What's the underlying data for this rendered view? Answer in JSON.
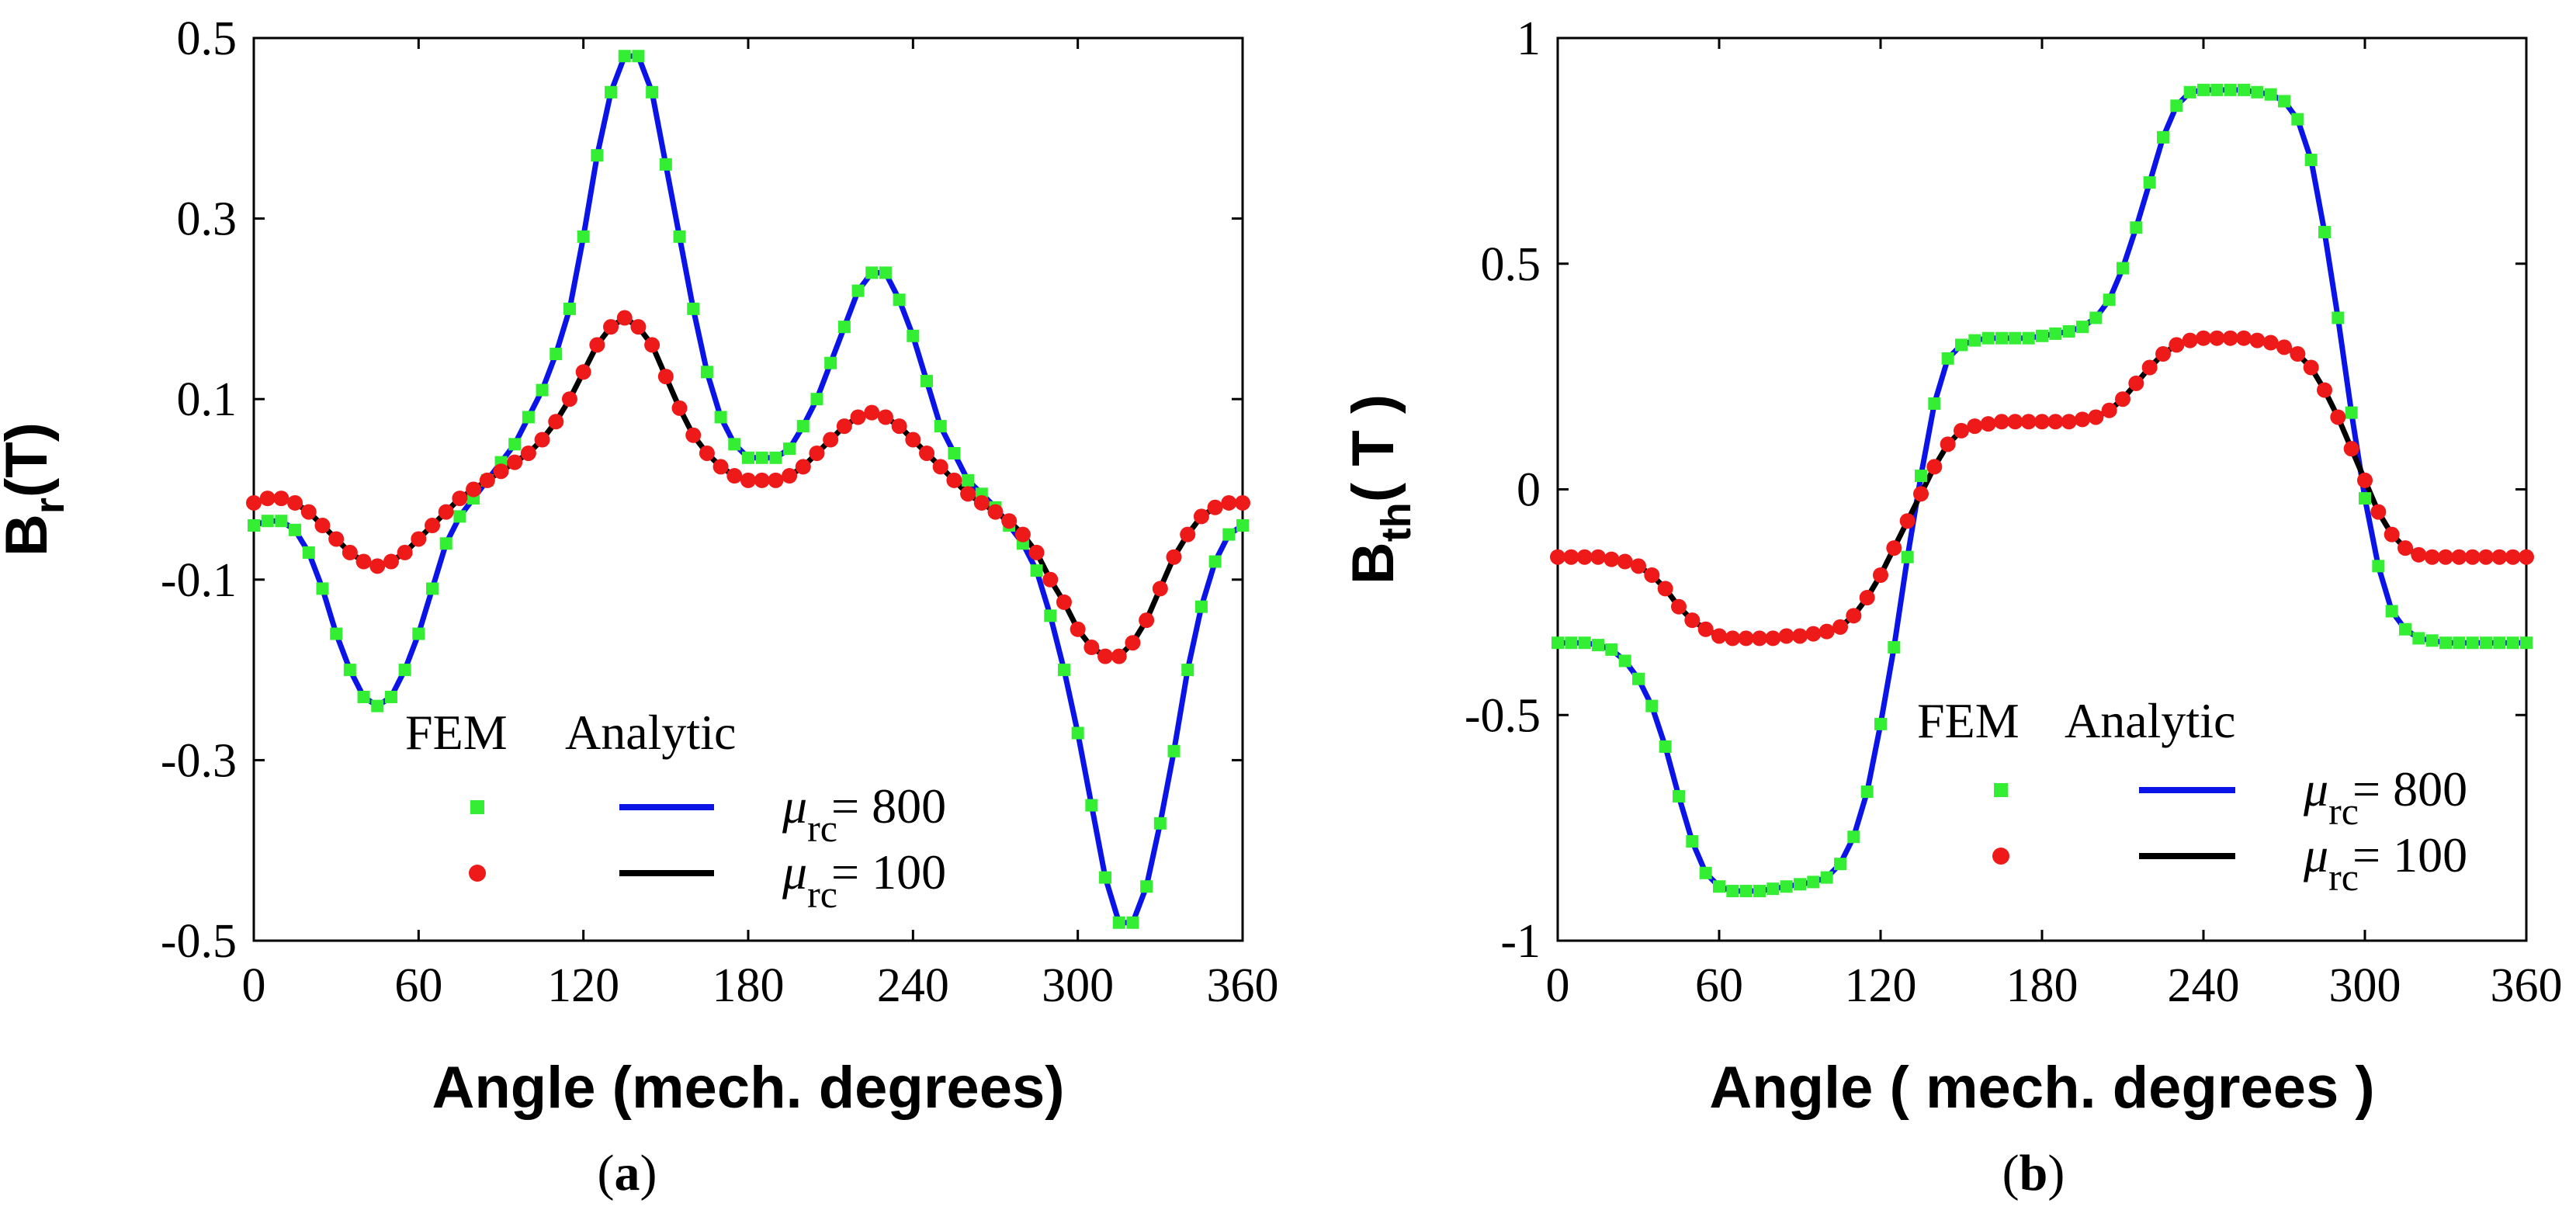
{
  "chart_data": [
    {
      "type": "line",
      "panel_label": "a",
      "xlabel": "Angle (mech. degrees)",
      "ylabel_main": "B",
      "ylabel_sub": "r",
      "ylabel_unit": "(T)",
      "xlim": [
        0,
        360
      ],
      "ylim": [
        -0.5,
        0.5
      ],
      "xticks": [
        "0",
        "60",
        "120",
        "180",
        "240",
        "300",
        "360"
      ],
      "yticks": [
        "-0.5",
        "-0.3",
        "-0.1",
        "0.1",
        "0.3",
        "0.5"
      ],
      "xtick_values": [
        0,
        60,
        120,
        180,
        240,
        300,
        360
      ],
      "ytick_values": [
        -0.5,
        -0.3,
        -0.1,
        0.1,
        0.3,
        0.5
      ],
      "legend": {
        "col_fem": "FEM",
        "col_analytic": "Analytic",
        "rows": [
          {
            "mu": "μ",
            "sub": "rc",
            "value": "= 800"
          },
          {
            "mu": "μ",
            "sub": "rc",
            "value": "= 100"
          }
        ]
      },
      "series": [
        {
          "name": "μrc = 800",
          "fem_color": "#33ee33",
          "line_color": "#0a14e6",
          "x": [
            0,
            5,
            10,
            15,
            20,
            25,
            30,
            35,
            40,
            45,
            50,
            55,
            60,
            65,
            70,
            75,
            80,
            85,
            90,
            95,
            100,
            105,
            110,
            115,
            120,
            125,
            130,
            135,
            140,
            145,
            150,
            155,
            160,
            165,
            170,
            175,
            180,
            185,
            190,
            195,
            200,
            205,
            210,
            215,
            220,
            225,
            230,
            235,
            240,
            245,
            250,
            255,
            260,
            265,
            270,
            275,
            280,
            285,
            290,
            295,
            300,
            305,
            310,
            315,
            320,
            325,
            330,
            335,
            340,
            345,
            350,
            355,
            360
          ],
          "y": [
            -0.04,
            -0.035,
            -0.035,
            -0.045,
            -0.07,
            -0.11,
            -0.16,
            -0.2,
            -0.23,
            -0.24,
            -0.23,
            -0.2,
            -0.16,
            -0.11,
            -0.06,
            -0.03,
            -0.01,
            0.01,
            0.03,
            0.05,
            0.08,
            0.11,
            0.15,
            0.2,
            0.28,
            0.37,
            0.44,
            0.48,
            0.48,
            0.44,
            0.36,
            0.28,
            0.2,
            0.13,
            0.08,
            0.05,
            0.035,
            0.035,
            0.035,
            0.045,
            0.07,
            0.1,
            0.14,
            0.18,
            0.22,
            0.24,
            0.24,
            0.21,
            0.17,
            0.12,
            0.07,
            0.04,
            0.01,
            -0.005,
            -0.02,
            -0.04,
            -0.06,
            -0.09,
            -0.14,
            -0.2,
            -0.27,
            -0.35,
            -0.43,
            -0.48,
            -0.48,
            -0.44,
            -0.37,
            -0.29,
            -0.2,
            -0.13,
            -0.08,
            -0.05,
            -0.04
          ]
        },
        {
          "name": "μrc = 100",
          "fem_color": "#ee1a1a",
          "line_color": "#000000",
          "x": [
            0,
            5,
            10,
            15,
            20,
            25,
            30,
            35,
            40,
            45,
            50,
            55,
            60,
            65,
            70,
            75,
            80,
            85,
            90,
            95,
            100,
            105,
            110,
            115,
            120,
            125,
            130,
            135,
            140,
            145,
            150,
            155,
            160,
            165,
            170,
            175,
            180,
            185,
            190,
            195,
            200,
            205,
            210,
            215,
            220,
            225,
            230,
            235,
            240,
            245,
            250,
            255,
            260,
            265,
            270,
            275,
            280,
            285,
            290,
            295,
            300,
            305,
            310,
            315,
            320,
            325,
            330,
            335,
            340,
            345,
            350,
            355,
            360
          ],
          "y": [
            -0.015,
            -0.01,
            -0.01,
            -0.015,
            -0.025,
            -0.04,
            -0.055,
            -0.07,
            -0.08,
            -0.085,
            -0.08,
            -0.07,
            -0.055,
            -0.04,
            -0.025,
            -0.01,
            0.0,
            0.01,
            0.02,
            0.03,
            0.04,
            0.055,
            0.075,
            0.1,
            0.13,
            0.16,
            0.18,
            0.19,
            0.18,
            0.16,
            0.125,
            0.09,
            0.06,
            0.04,
            0.025,
            0.015,
            0.01,
            0.01,
            0.01,
            0.015,
            0.025,
            0.04,
            0.055,
            0.07,
            0.08,
            0.085,
            0.08,
            0.07,
            0.055,
            0.04,
            0.025,
            0.01,
            -0.005,
            -0.015,
            -0.025,
            -0.035,
            -0.05,
            -0.07,
            -0.1,
            -0.125,
            -0.155,
            -0.175,
            -0.185,
            -0.185,
            -0.17,
            -0.145,
            -0.11,
            -0.075,
            -0.05,
            -0.03,
            -0.02,
            -0.015,
            -0.015
          ]
        }
      ]
    },
    {
      "type": "line",
      "panel_label": "b",
      "xlabel": "Angle ( mech. degrees )",
      "ylabel_main": "B",
      "ylabel_sub": "th",
      "ylabel_unit": "( T )",
      "xlim": [
        0,
        360
      ],
      "ylim": [
        -1,
        1
      ],
      "xticks": [
        "0",
        "60",
        "120",
        "180",
        "240",
        "300",
        "360"
      ],
      "yticks": [
        "-1",
        "-0.5",
        "0",
        "0.5",
        "1"
      ],
      "xtick_values": [
        0,
        60,
        120,
        180,
        240,
        300,
        360
      ],
      "ytick_values": [
        -1,
        -0.5,
        0,
        0.5,
        1
      ],
      "legend": {
        "col_fem": "FEM",
        "col_analytic": "Analytic",
        "rows": [
          {
            "mu": "μ",
            "sub": "rc",
            "value": "= 800"
          },
          {
            "mu": "μ",
            "sub": "rc",
            "value": "= 100"
          }
        ]
      },
      "series": [
        {
          "name": "μrc = 800",
          "fem_color": "#33ee33",
          "line_color": "#0a14e6",
          "x": [
            0,
            5,
            10,
            15,
            20,
            25,
            30,
            35,
            40,
            45,
            50,
            55,
            60,
            65,
            70,
            75,
            80,
            85,
            90,
            95,
            100,
            105,
            110,
            115,
            120,
            125,
            130,
            135,
            140,
            145,
            150,
            155,
            160,
            165,
            170,
            175,
            180,
            185,
            190,
            195,
            200,
            205,
            210,
            215,
            220,
            225,
            230,
            235,
            240,
            245,
            250,
            255,
            260,
            265,
            270,
            275,
            280,
            285,
            290,
            295,
            300,
            305,
            310,
            315,
            320,
            325,
            330,
            335,
            340,
            345,
            350,
            355,
            360
          ],
          "y": [
            -0.34,
            -0.34,
            -0.34,
            -0.345,
            -0.355,
            -0.38,
            -0.42,
            -0.48,
            -0.57,
            -0.68,
            -0.78,
            -0.85,
            -0.88,
            -0.89,
            -0.89,
            -0.89,
            -0.885,
            -0.88,
            -0.875,
            -0.87,
            -0.86,
            -0.83,
            -0.77,
            -0.67,
            -0.52,
            -0.35,
            -0.15,
            0.03,
            0.19,
            0.29,
            0.32,
            0.33,
            0.335,
            0.335,
            0.335,
            0.335,
            0.34,
            0.345,
            0.35,
            0.36,
            0.38,
            0.42,
            0.49,
            0.58,
            0.68,
            0.78,
            0.85,
            0.88,
            0.885,
            0.885,
            0.885,
            0.885,
            0.88,
            0.875,
            0.86,
            0.82,
            0.73,
            0.57,
            0.38,
            0.17,
            -0.02,
            -0.17,
            -0.27,
            -0.31,
            -0.33,
            -0.335,
            -0.34,
            -0.34,
            -0.34,
            -0.34,
            -0.34,
            -0.34,
            -0.34
          ]
        },
        {
          "name": "μrc = 100",
          "fem_color": "#ee1a1a",
          "line_color": "#000000",
          "x": [
            0,
            5,
            10,
            15,
            20,
            25,
            30,
            35,
            40,
            45,
            50,
            55,
            60,
            65,
            70,
            75,
            80,
            85,
            90,
            95,
            100,
            105,
            110,
            115,
            120,
            125,
            130,
            135,
            140,
            145,
            150,
            155,
            160,
            165,
            170,
            175,
            180,
            185,
            190,
            195,
            200,
            205,
            210,
            215,
            220,
            225,
            230,
            235,
            240,
            245,
            250,
            255,
            260,
            265,
            270,
            275,
            280,
            285,
            290,
            295,
            300,
            305,
            310,
            315,
            320,
            325,
            330,
            335,
            340,
            345,
            350,
            355,
            360
          ],
          "y": [
            -0.15,
            -0.15,
            -0.15,
            -0.15,
            -0.155,
            -0.16,
            -0.17,
            -0.19,
            -0.22,
            -0.26,
            -0.29,
            -0.31,
            -0.325,
            -0.33,
            -0.33,
            -0.33,
            -0.33,
            -0.325,
            -0.325,
            -0.32,
            -0.315,
            -0.305,
            -0.28,
            -0.24,
            -0.19,
            -0.13,
            -0.07,
            -0.01,
            0.05,
            0.1,
            0.13,
            0.14,
            0.145,
            0.15,
            0.15,
            0.15,
            0.15,
            0.15,
            0.15,
            0.155,
            0.16,
            0.175,
            0.2,
            0.235,
            0.27,
            0.3,
            0.32,
            0.33,
            0.335,
            0.335,
            0.335,
            0.335,
            0.33,
            0.325,
            0.315,
            0.3,
            0.27,
            0.22,
            0.16,
            0.09,
            0.02,
            -0.05,
            -0.1,
            -0.13,
            -0.145,
            -0.15,
            -0.15,
            -0.15,
            -0.15,
            -0.15,
            -0.15,
            -0.15,
            -0.15
          ]
        }
      ]
    }
  ]
}
